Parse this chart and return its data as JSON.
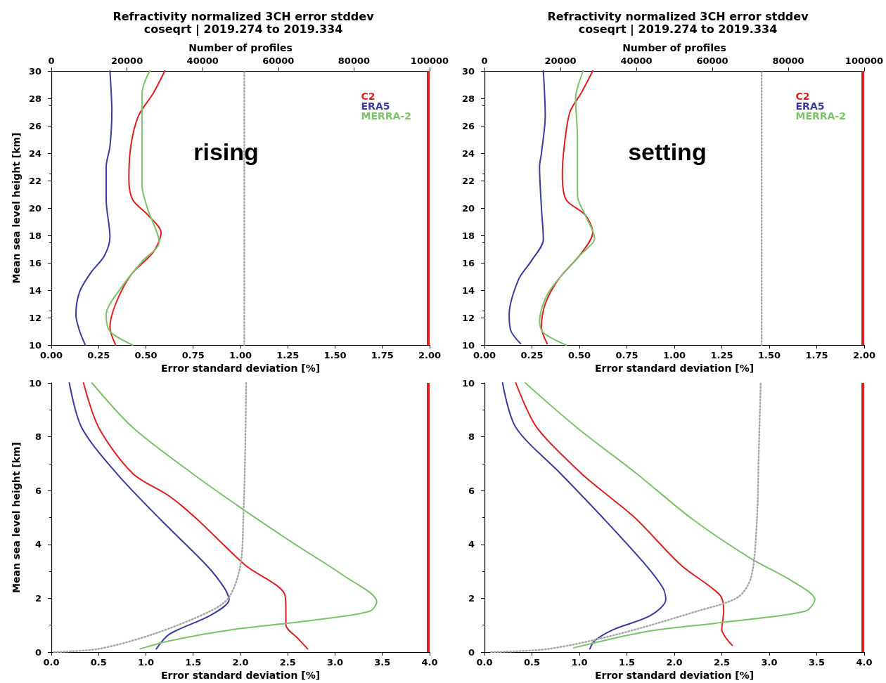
{
  "chart_data": [
    {
      "type": "line",
      "title": "Refractivity normalized 3CH error stddev",
      "subtitle": "coseqrt | 2019.274 to 2019.334",
      "x2label": "Number of profiles",
      "xlabel": "Error standard deviation [%]",
      "ylabel": "Mean sea level height [km]",
      "xlim": [
        0,
        2
      ],
      "xticks": [
        {
          "value": 0,
          "label": "0.00"
        },
        {
          "value": 0.25,
          "label": "0.25"
        },
        {
          "value": 0.5,
          "label": "0.50"
        },
        {
          "value": 0.75,
          "label": "0.75"
        },
        {
          "value": 1,
          "label": "1.00"
        },
        {
          "value": 1.25,
          "label": "1.25"
        },
        {
          "value": 1.5,
          "label": "1.50"
        },
        {
          "value": 1.75,
          "label": "1.75"
        },
        {
          "value": 2,
          "label": "2.00"
        }
      ],
      "x2lim": [
        0,
        100000
      ],
      "x2ticks": [
        0,
        20000,
        40000,
        60000,
        80000,
        100000
      ],
      "ylim": [
        10,
        30
      ],
      "yticks": [
        10,
        12,
        14,
        16,
        18,
        20,
        22,
        24,
        26,
        28,
        30
      ],
      "legend": "top right",
      "annotations": [
        "rising"
      ],
      "ref_lines": [
        {
          "axis": "x",
          "value": 1.99,
          "color": "#dd2020"
        }
      ],
      "series": [
        {
          "name": "C2",
          "color": "#dd2020",
          "x": [
            0.6,
            0.54,
            0.46,
            0.42,
            0.41,
            0.43,
            0.51,
            0.58,
            0.54,
            0.42,
            0.34,
            0.31,
            0.34
          ],
          "values": [
            30,
            28.4,
            26.7,
            24.5,
            22.1,
            20.6,
            19.5,
            18.2,
            16.8,
            15.1,
            13,
            11.3,
            10
          ]
        },
        {
          "name": "ERA5",
          "color": "#3a3c9c",
          "x": [
            0.31,
            0.32,
            0.31,
            0.29,
            0.29,
            0.31,
            0.28,
            0.21,
            0.15,
            0.13,
            0.15,
            0.18
          ],
          "values": [
            30,
            27,
            24.5,
            23,
            20.6,
            17.9,
            16.5,
            15.3,
            13.9,
            12.2,
            11,
            10
          ]
        },
        {
          "name": "MERRA-2",
          "color": "#7cc26a",
          "x": [
            0.52,
            0.48,
            0.48,
            0.48,
            0.51,
            0.57,
            0.48,
            0.37,
            0.29,
            0.31,
            0.43
          ],
          "values": [
            30,
            28.4,
            25,
            21.6,
            19.9,
            17.5,
            16.1,
            14.2,
            12.2,
            11,
            10
          ]
        },
        {
          "color": "#a8a8a8",
          "axis": "x2",
          "line_style": "dotted",
          "x": [
            51000,
            51000
          ],
          "values": [
            10,
            30
          ]
        }
      ]
    },
    {
      "type": "line",
      "title": "Refractivity normalized 3CH error stddev",
      "subtitle": "coseqrt | 2019.274 to 2019.334",
      "x2label": "Number of profiles",
      "xlabel": "Error standard deviation [%]",
      "xlim": [
        0,
        2
      ],
      "xticks": [
        {
          "value": 0,
          "label": "0.00"
        },
        {
          "value": 0.25,
          "label": "0.25"
        },
        {
          "value": 0.5,
          "label": "0.50"
        },
        {
          "value": 0.75,
          "label": "0.75"
        },
        {
          "value": 1,
          "label": "1.00"
        },
        {
          "value": 1.25,
          "label": "1.25"
        },
        {
          "value": 1.5,
          "label": "1.50"
        },
        {
          "value": 1.75,
          "label": "1.75"
        },
        {
          "value": 2,
          "label": "2.00"
        }
      ],
      "x2lim": [
        0,
        100000
      ],
      "x2ticks": [
        0,
        20000,
        40000,
        60000,
        80000,
        100000
      ],
      "ylim": [
        10,
        30
      ],
      "yticks": [
        10,
        12,
        14,
        16,
        18,
        20,
        22,
        24,
        26,
        28,
        30
      ],
      "legend": "top right",
      "annotations": [
        "setting"
      ],
      "ref_lines": [
        {
          "axis": "x",
          "value": 1.99,
          "color": "#dd2020"
        }
      ],
      "series": [
        {
          "name": "C2",
          "color": "#dd2020",
          "x": [
            0.57,
            0.51,
            0.45,
            0.42,
            0.41,
            0.43,
            0.53,
            0.57,
            0.51,
            0.39,
            0.32,
            0.3,
            0.33
          ],
          "values": [
            30,
            28.4,
            27,
            24.5,
            22.4,
            20.6,
            19.5,
            18.2,
            16.7,
            14.8,
            13,
            11.3,
            10.1
          ]
        },
        {
          "name": "ERA5",
          "color": "#3a3c9c",
          "x": [
            0.31,
            0.32,
            0.3,
            0.29,
            0.3,
            0.31,
            0.25,
            0.18,
            0.13,
            0.14,
            0.19
          ],
          "values": [
            30,
            26.7,
            24,
            23,
            20,
            17.7,
            16.2,
            14.8,
            12.2,
            11,
            10.1
          ]
        },
        {
          "name": "MERRA-2",
          "color": "#7cc26a",
          "x": [
            0.52,
            0.48,
            0.49,
            0.49,
            0.53,
            0.58,
            0.5,
            0.34,
            0.29,
            0.31,
            0.43
          ],
          "values": [
            30,
            28,
            25,
            20.9,
            19.5,
            17.8,
            16.5,
            13.9,
            11.7,
            10.9,
            10
          ]
        },
        {
          "color": "#a8a8a8",
          "axis": "x2",
          "line_style": "dotted",
          "x": [
            73000,
            73000
          ],
          "values": [
            10,
            30
          ]
        }
      ]
    },
    {
      "type": "line",
      "xlabel": "Error standard deviation [%]",
      "ylabel": "Mean sea level height [km]",
      "xlim": [
        0,
        4
      ],
      "xticks": [
        {
          "value": 0,
          "label": "0.0"
        },
        {
          "value": 0.5,
          "label": "0.5"
        },
        {
          "value": 1,
          "label": "1.0"
        },
        {
          "value": 1.5,
          "label": "1.5"
        },
        {
          "value": 2,
          "label": "2.0"
        },
        {
          "value": 2.5,
          "label": "2.5"
        },
        {
          "value": 3,
          "label": "3.0"
        },
        {
          "value": 3.5,
          "label": "3.5"
        },
        {
          "value": 4,
          "label": "4.0"
        }
      ],
      "ylim": [
        0,
        10
      ],
      "yticks": [
        0,
        2,
        4,
        6,
        8,
        10
      ],
      "ref_lines": [
        {
          "axis": "x",
          "value": 3.98,
          "color": "#dd2020"
        }
      ],
      "series": [
        {
          "color": "#dd2020",
          "x": [
            0.34,
            0.5,
            0.86,
            1.25,
            1.54,
            2.05,
            2.47,
            2.48,
            2.48,
            2.61,
            2.71
          ],
          "values": [
            10,
            8.35,
            6.64,
            5.79,
            4.94,
            3.23,
            2.12,
            1.52,
            1.01,
            0.5,
            0.12
          ]
        },
        {
          "color": "#3a3c9c",
          "x": [
            0.19,
            0.32,
            0.69,
            1.15,
            1.64,
            1.83,
            1.88,
            1.68,
            1.25,
            1.11
          ],
          "values": [
            10,
            8.35,
            6.64,
            4.94,
            3.23,
            2.38,
            1.95,
            1.36,
            0.67,
            0.12
          ]
        },
        {
          "color": "#7cc26a",
          "x": [
            0.43,
            0.86,
            1.49,
            2,
            2.54,
            3.1,
            3.44,
            3.37,
            2.78,
            1.93,
            1.25,
            0.94
          ],
          "values": [
            10,
            8.35,
            6.64,
            5.37,
            4.09,
            2.82,
            1.87,
            1.52,
            1.19,
            0.84,
            0.42,
            0.12
          ]
        },
        {
          "color": "#a8a8a8",
          "line_style": "dotted",
          "x": [
            0.03,
            0.5,
            1.08,
            1.68,
            1.88,
            2,
            2.03,
            2.05,
            2.06
          ],
          "values": [
            0,
            0.12,
            0.67,
            1.52,
            2.04,
            3.23,
            4.94,
            7.5,
            10
          ]
        }
      ]
    },
    {
      "type": "line",
      "xlabel": "Error standard deviation [%]",
      "xlim": [
        0,
        4
      ],
      "xticks": [
        {
          "value": 0,
          "label": "0.0"
        },
        {
          "value": 0.5,
          "label": "0.5"
        },
        {
          "value": 1,
          "label": "1.0"
        },
        {
          "value": 1.5,
          "label": "1.5"
        },
        {
          "value": 2,
          "label": "2.0"
        },
        {
          "value": 2.5,
          "label": "2.5"
        },
        {
          "value": 3,
          "label": "3.0"
        },
        {
          "value": 3.5,
          "label": "3.5"
        },
        {
          "value": 4,
          "label": "4.0"
        }
      ],
      "ylim": [
        0,
        10
      ],
      "yticks": [
        0,
        2,
        4,
        6,
        8,
        10
      ],
      "ref_lines": [
        {
          "axis": "x",
          "value": 3.98,
          "color": "#dd2020"
        }
      ],
      "series": [
        {
          "color": "#dd2020",
          "x": [
            0.33,
            0.55,
            1.02,
            1.31,
            1.6,
            2.07,
            2.48,
            2.52,
            2.5,
            2.61
          ],
          "values": [
            10,
            8.35,
            6.64,
            5.79,
            4.94,
            3.23,
            2.12,
            1.52,
            0.84,
            0.25
          ]
        },
        {
          "color": "#3a3c9c",
          "x": [
            0.19,
            0.33,
            0.8,
            1.26,
            1.7,
            1.88,
            1.91,
            1.75,
            1.36,
            1.16,
            1.11
          ],
          "values": [
            10,
            8.35,
            6.64,
            4.94,
            3.23,
            2.38,
            1.95,
            1.36,
            0.84,
            0.42,
            0.12
          ]
        },
        {
          "color": "#7cc26a",
          "x": [
            0.43,
            0.97,
            1.6,
            2.19,
            2.8,
            3.24,
            3.48,
            3.38,
            2.5,
            1.7,
            0.94
          ],
          "values": [
            10,
            8.35,
            6.64,
            4.94,
            3.49,
            2.64,
            1.95,
            1.52,
            1.1,
            0.76,
            0.16
          ]
        },
        {
          "color": "#a8a8a8",
          "line_style": "dotted",
          "x": [
            0.07,
            0.68,
            1.41,
            2.24,
            2.67,
            2.81,
            2.87,
            2.89,
            2.91
          ],
          "values": [
            0,
            0.12,
            0.67,
            1.52,
            2.04,
            2.8,
            4.94,
            7.5,
            10
          ]
        }
      ]
    }
  ]
}
